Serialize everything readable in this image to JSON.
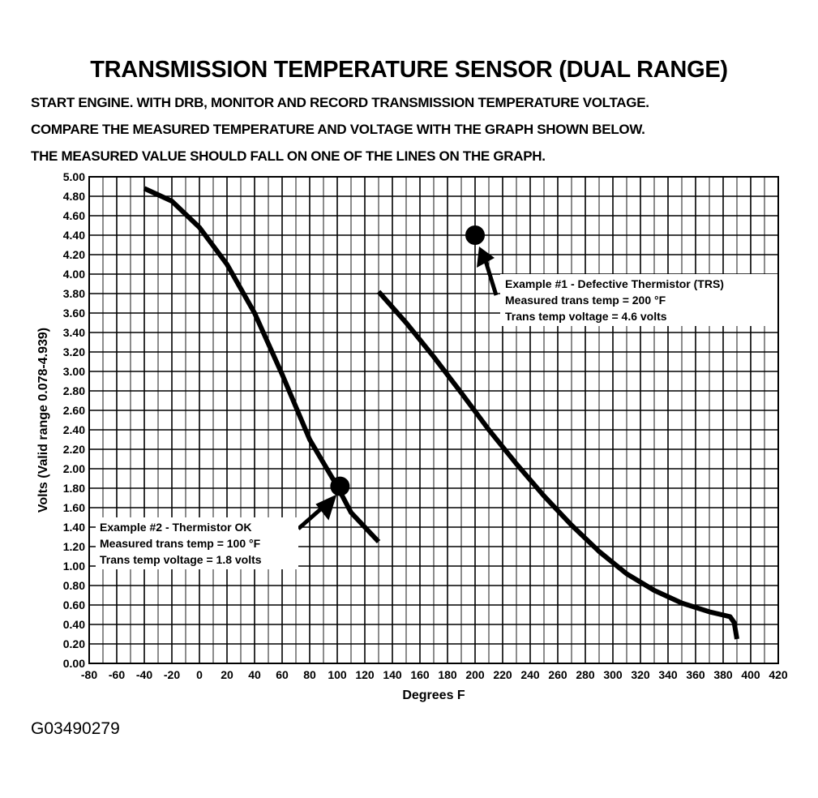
{
  "header": {
    "title": "TRANSMISSION TEMPERATURE SENSOR (DUAL RANGE)",
    "instructions": [
      "START ENGINE.  WITH DRB, MONITOR AND RECORD TRANSMISSION TEMPERATURE VOLTAGE.",
      "COMPARE THE MEASURED TEMPERATURE AND VOLTAGE WITH THE GRAPH SHOWN BELOW.",
      "THE MEASURED VALUE SHOULD FALL ON ONE OF THE LINES ON THE GRAPH."
    ]
  },
  "figure_id": "G03490279",
  "chart_data": {
    "type": "line",
    "xlabel": "Degrees F",
    "ylabel": "Volts (Valid range 0.078-4.939)",
    "xlim": [
      -80,
      420
    ],
    "ylim": [
      0,
      5
    ],
    "x_ticks": [
      -80,
      -60,
      -40,
      -20,
      0,
      20,
      40,
      60,
      80,
      100,
      120,
      140,
      160,
      180,
      200,
      220,
      240,
      260,
      280,
      300,
      320,
      340,
      360,
      380,
      400,
      420
    ],
    "y_ticks": [
      0,
      0.2,
      0.4,
      0.6,
      0.8,
      1,
      1.2,
      1.4,
      1.6,
      1.8,
      2,
      2.2,
      2.4,
      2.6,
      2.8,
      3,
      3.2,
      3.4,
      3.6,
      3.8,
      4,
      4.2,
      4.4,
      4.6,
      4.8,
      5
    ],
    "x_minor_step": 10,
    "grid": true,
    "series": [
      {
        "points": [
          [
            -40,
            4.88
          ],
          [
            -20,
            4.75
          ],
          [
            0,
            4.48
          ],
          [
            20,
            4.1
          ],
          [
            40,
            3.6
          ],
          [
            60,
            2.97
          ],
          [
            80,
            2.3
          ],
          [
            100,
            1.82
          ],
          [
            110,
            1.55
          ],
          [
            130,
            1.25
          ]
        ]
      },
      {
        "points": [
          [
            130,
            3.82
          ],
          [
            150,
            3.5
          ],
          [
            170,
            3.15
          ],
          [
            190,
            2.78
          ],
          [
            210,
            2.4
          ],
          [
            230,
            2.05
          ],
          [
            250,
            1.72
          ],
          [
            270,
            1.42
          ],
          [
            290,
            1.15
          ],
          [
            310,
            0.92
          ],
          [
            330,
            0.75
          ],
          [
            350,
            0.62
          ],
          [
            370,
            0.53
          ],
          [
            385,
            0.48
          ],
          [
            388,
            0.42
          ],
          [
            390,
            0.25
          ]
        ]
      }
    ],
    "annotations": [
      {
        "x": 200,
        "y": 4.4,
        "lines": [
          "Example #1 - Defective Thermistor (TRS)",
          "Measured trans temp = 200 °F",
          "Trans temp voltage = 4.6 volts"
        ]
      },
      {
        "x": 102,
        "y": 1.82,
        "lines": [
          "Example #2 - Thermistor OK",
          "Measured trans temp = 100 °F",
          "Trans temp voltage = 1.8 volts"
        ]
      }
    ]
  }
}
